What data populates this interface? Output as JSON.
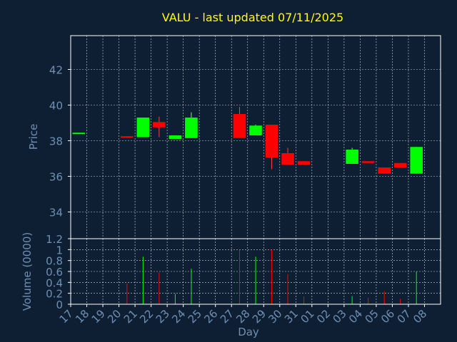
{
  "colors": {
    "background": "#0f1f33",
    "title": "#ffff00",
    "axis_text": "#6f8fb3",
    "frame": "#ffffff",
    "grid": "#ffffff",
    "up": "#00ff00",
    "down": "#ff0000"
  },
  "chart_data": [
    {
      "type": "candlestick",
      "title": "VALU - last updated 07/11/2025",
      "ylabel": "Price",
      "ylim": [
        32.5,
        43.9
      ],
      "yticks": [
        34,
        36,
        38,
        40,
        42
      ],
      "grid": true,
      "x_ticks": [
        "17",
        "18",
        "19",
        "20",
        "21",
        "22",
        "23",
        "24",
        "25",
        "26",
        "27",
        "28",
        "29",
        "30",
        "31",
        "01",
        "02",
        "03",
        "04",
        "05",
        "06",
        "07",
        "08"
      ],
      "candles": [
        {
          "x": 0,
          "open": 38.45,
          "close": 38.45,
          "high": 38.45,
          "low": 38.45
        },
        {
          "x": 3,
          "open": 38.25,
          "close": 38.2,
          "high": 38.25,
          "low": 38.2
        },
        {
          "x": 4,
          "open": 38.2,
          "close": 39.3,
          "high": 39.3,
          "low": 38.2
        },
        {
          "x": 5,
          "open": 39.05,
          "close": 38.75,
          "high": 39.35,
          "low": 38.2
        },
        {
          "x": 6,
          "open": 38.1,
          "close": 38.3,
          "high": 38.3,
          "low": 38.1
        },
        {
          "x": 7,
          "open": 38.15,
          "close": 39.3,
          "high": 39.6,
          "low": 38.15
        },
        {
          "x": 10,
          "open": 39.5,
          "close": 38.15,
          "high": 39.9,
          "low": 38.15
        },
        {
          "x": 11,
          "open": 38.3,
          "close": 38.85,
          "high": 38.9,
          "low": 38.3
        },
        {
          "x": 12,
          "open": 38.9,
          "close": 37.05,
          "high": 38.9,
          "low": 36.4
        },
        {
          "x": 13,
          "open": 37.3,
          "close": 36.65,
          "high": 37.6,
          "low": 36.65
        },
        {
          "x": 14,
          "open": 36.85,
          "close": 36.65,
          "high": 36.85,
          "low": 36.65
        },
        {
          "x": 17,
          "open": 36.7,
          "close": 37.5,
          "high": 37.6,
          "low": 36.7
        },
        {
          "x": 18,
          "open": 36.85,
          "close": 36.75,
          "high": 36.85,
          "low": 36.75
        },
        {
          "x": 19,
          "open": 36.5,
          "close": 36.15,
          "high": 36.5,
          "low": 36.15
        },
        {
          "x": 20,
          "open": 36.75,
          "close": 36.5,
          "high": 36.75,
          "low": 36.5
        },
        {
          "x": 21,
          "open": 36.15,
          "close": 37.65,
          "high": 37.65,
          "low": 36.15
        }
      ]
    },
    {
      "type": "bar",
      "ylabel": "Volume (0000)",
      "xlabel": "Day",
      "ylim": [
        0,
        1.2
      ],
      "yticks": [
        0,
        0.2,
        0.4,
        0.6,
        0.8,
        1,
        1.2
      ],
      "grid": true,
      "bars": [
        {
          "x": 3,
          "value": 0.38,
          "dir": "down"
        },
        {
          "x": 4,
          "value": 0.87,
          "dir": "up"
        },
        {
          "x": 5,
          "value": 0.58,
          "dir": "down"
        },
        {
          "x": 6,
          "value": 0.19,
          "dir": "up"
        },
        {
          "x": 7,
          "value": 0.65,
          "dir": "up"
        },
        {
          "x": 10,
          "value": 1.0,
          "dir": "down"
        },
        {
          "x": 11,
          "value": 0.87,
          "dir": "up"
        },
        {
          "x": 12,
          "value": 1.0,
          "dir": "down"
        },
        {
          "x": 13,
          "value": 0.55,
          "dir": "down"
        },
        {
          "x": 14,
          "value": 0.14,
          "dir": "down"
        },
        {
          "x": 17,
          "value": 0.15,
          "dir": "up"
        },
        {
          "x": 18,
          "value": 0.12,
          "dir": "down"
        },
        {
          "x": 19,
          "value": 0.24,
          "dir": "down"
        },
        {
          "x": 20,
          "value": 0.1,
          "dir": "down"
        },
        {
          "x": 21,
          "value": 0.6,
          "dir": "up"
        }
      ]
    }
  ]
}
